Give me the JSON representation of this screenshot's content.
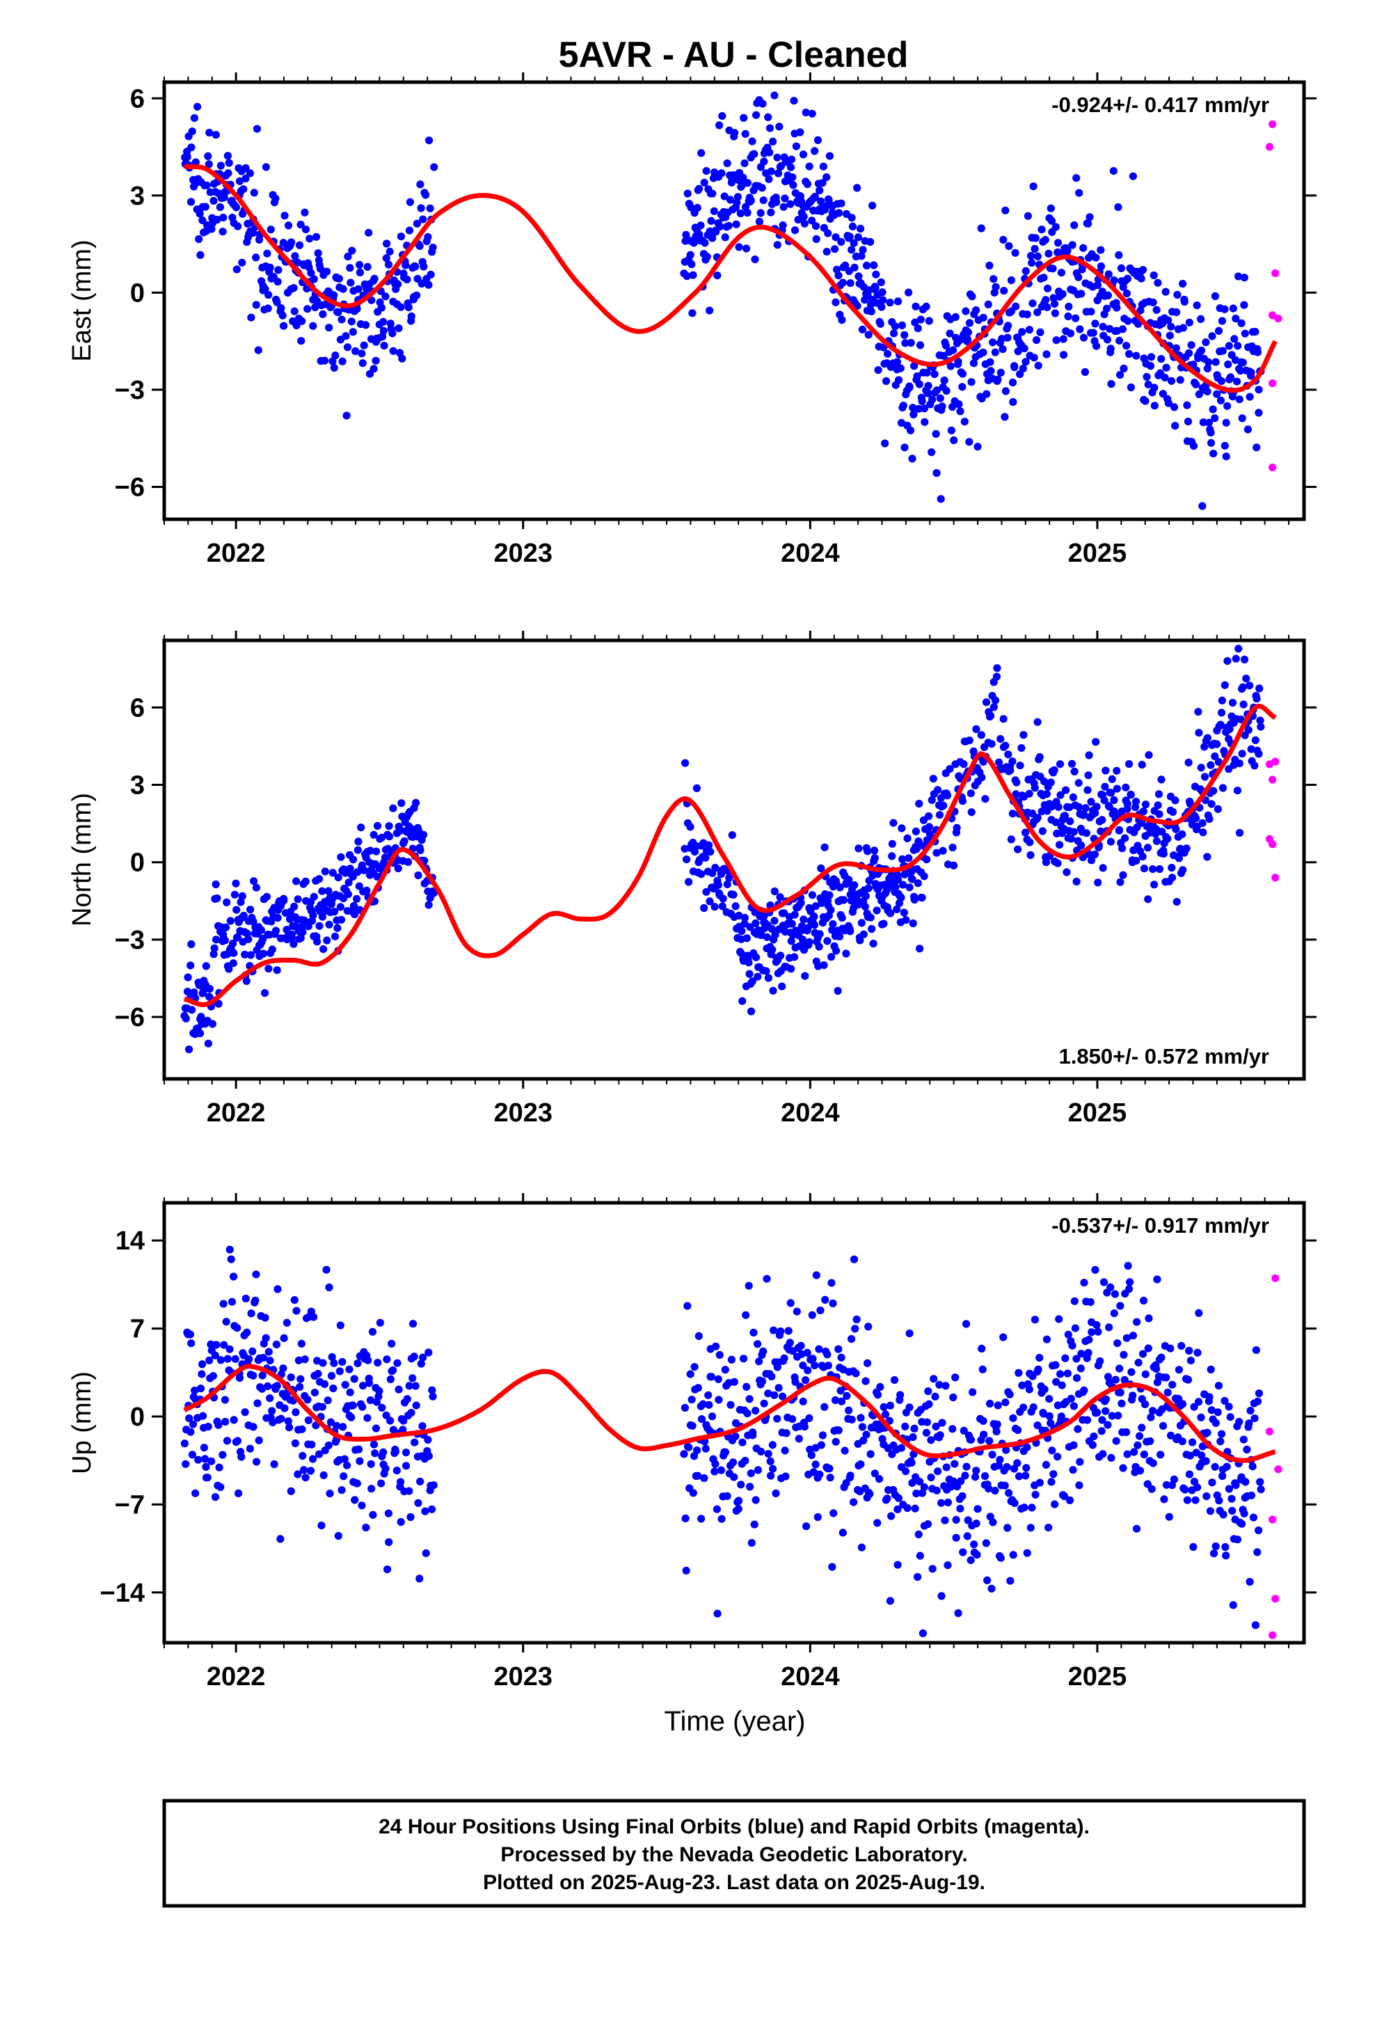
{
  "title": "5AVR  - AU - Cleaned",
  "xlabel": "Time (year)",
  "footer": {
    "line1": "24 Hour Positions Using Final Orbits (blue) and Rapid Orbits (magenta).",
    "line2": "Processed by the Nevada Geodetic Laboratory.",
    "line3": "Plotted on 2025-Aug-23. Last data on 2025-Aug-19."
  },
  "colors": {
    "final": "#0000ff",
    "rapid": "#ff00ff",
    "model": "#ff0000",
    "frame": "#000000"
  },
  "chart_data": [
    {
      "type": "scatter",
      "ylabel": "East (mm)",
      "rate_text": "-0.924+/- 0.417 mm/yr",
      "rate_position": "top-right",
      "xlim": [
        2021.75,
        2025.72
      ],
      "ylim": [
        -7,
        6.5
      ],
      "x_ticks": [
        2022,
        2023,
        2024,
        2025
      ],
      "y_ticks": [
        6,
        3,
        0,
        -3,
        -6
      ],
      "y_tick_labels": [
        "6",
        "3",
        "0",
        "−3",
        "−6"
      ],
      "series": [
        {
          "kind": "final",
          "segments": [
            {
              "x0": 2021.82,
              "x1": 2022.69,
              "n": 330,
              "ctrl_x": [
                2021.82,
                2022.0,
                2022.2,
                2022.42,
                2022.55,
                2022.69
              ],
              "ctrl_y": [
                4.2,
                2.5,
                0.5,
                -0.6,
                -0.2,
                2.0
              ],
              "sd": 1.0
            },
            {
              "x0": 2023.56,
              "x1": 2024.26,
              "n": 290,
              "ctrl_x": [
                2023.56,
                2023.65,
                2023.82,
                2024.0,
                2024.15,
                2024.26
              ],
              "ctrl_y": [
                0.8,
                2.5,
                4.2,
                2.8,
                0.8,
                -1.0
              ],
              "sd": 1.1
            },
            {
              "x0": 2024.26,
              "x1": 2025.57,
              "n": 520,
              "ctrl_x": [
                2024.26,
                2024.42,
                2024.6,
                2024.88,
                2025.1,
                2025.35,
                2025.57
              ],
              "ctrl_y": [
                -1.8,
                -2.8,
                -1.8,
                0.8,
                -0.3,
                -2.6,
                -2.4
              ],
              "sd": 1.3
            }
          ]
        },
        {
          "kind": "rapid",
          "points": [
            [
              2025.61,
              5.2
            ],
            [
              2025.6,
              4.5
            ],
            [
              2025.62,
              0.6
            ],
            [
              2025.61,
              -0.7
            ],
            [
              2025.63,
              -0.8
            ],
            [
              2025.61,
              -2.8
            ],
            [
              2025.61,
              -5.4
            ]
          ]
        }
      ],
      "model": {
        "x": [
          2021.82,
          2021.9,
          2022.0,
          2022.1,
          2022.2,
          2022.3,
          2022.4,
          2022.5,
          2022.6,
          2022.7,
          2022.85,
          2023.0,
          2023.2,
          2023.4,
          2023.6,
          2023.75,
          2023.85,
          2024.0,
          2024.15,
          2024.3,
          2024.45,
          2024.6,
          2024.75,
          2024.88,
          2025.0,
          2025.15,
          2025.3,
          2025.45,
          2025.55,
          2025.62
        ],
        "y": [
          3.9,
          3.8,
          3.0,
          1.8,
          0.8,
          -0.1,
          -0.4,
          0.2,
          1.3,
          2.4,
          3.0,
          2.5,
          0.2,
          -1.2,
          0.0,
          1.7,
          2.0,
          1.1,
          -0.5,
          -1.8,
          -2.2,
          -1.3,
          0.3,
          1.1,
          0.6,
          -0.8,
          -2.2,
          -3.0,
          -2.7,
          -1.5
        ]
      }
    },
    {
      "type": "scatter",
      "ylabel": "North (mm)",
      "rate_text": "1.850+/- 0.572 mm/yr",
      "rate_position": "bottom-right",
      "xlim": [
        2021.75,
        2025.72
      ],
      "ylim": [
        -8.4,
        8.6
      ],
      "x_ticks": [
        2022,
        2023,
        2024,
        2025
      ],
      "y_ticks": [
        6,
        3,
        0,
        -3,
        -6
      ],
      "y_tick_labels": [
        "6",
        "3",
        "0",
        "−3",
        "−6"
      ],
      "series": [
        {
          "kind": "final",
          "segments": [
            {
              "x0": 2021.82,
              "x1": 2021.92,
              "n": 40,
              "ctrl_x": [
                2021.82,
                2021.92
              ],
              "ctrl_y": [
                -5.8,
                -5.5
              ],
              "sd": 1.0
            },
            {
              "x0": 2021.92,
              "x1": 2022.69,
              "n": 300,
              "ctrl_x": [
                2021.92,
                2022.1,
                2022.3,
                2022.5,
                2022.6,
                2022.69
              ],
              "ctrl_y": [
                -2.8,
                -2.6,
                -2.0,
                0.0,
                1.5,
                -1.0
              ],
              "sd": 0.9
            },
            {
              "x0": 2023.56,
              "x1": 2023.75,
              "n": 60,
              "ctrl_x": [
                2023.56,
                2023.65,
                2023.75
              ],
              "ctrl_y": [
                1.5,
                0.0,
                -1.5
              ],
              "sd": 0.9
            },
            {
              "x0": 2023.75,
              "x1": 2024.4,
              "n": 300,
              "ctrl_x": [
                2023.75,
                2023.9,
                2024.1,
                2024.3,
                2024.4
              ],
              "ctrl_y": [
                -3.5,
                -3.0,
                -1.8,
                -1.0,
                0.0
              ],
              "sd": 1.0
            },
            {
              "x0": 2024.4,
              "x1": 2024.7,
              "n": 90,
              "ctrl_x": [
                2024.4,
                2024.55,
                2024.65,
                2024.7
              ],
              "ctrl_y": [
                1.5,
                3.0,
                5.5,
                4.0
              ],
              "sd": 1.1
            },
            {
              "x0": 2024.7,
              "x1": 2025.57,
              "n": 340,
              "ctrl_x": [
                2024.7,
                2024.9,
                2025.1,
                2025.3,
                2025.45,
                2025.57
              ],
              "ctrl_y": [
                2.5,
                1.8,
                1.5,
                1.2,
                4.5,
                6.0
              ],
              "sd": 1.2
            }
          ]
        },
        {
          "kind": "rapid",
          "points": [
            [
              2025.6,
              3.8
            ],
            [
              2025.62,
              3.9
            ],
            [
              2025.61,
              3.2
            ],
            [
              2025.6,
              0.9
            ],
            [
              2025.61,
              0.7
            ],
            [
              2025.62,
              -0.6
            ]
          ]
        }
      ],
      "model": {
        "x": [
          2021.82,
          2021.9,
          2022.0,
          2022.1,
          2022.2,
          2022.3,
          2022.4,
          2022.5,
          2022.58,
          2022.7,
          2022.8,
          2022.9,
          2023.0,
          2023.1,
          2023.2,
          2023.3,
          2023.4,
          2023.5,
          2023.58,
          2023.7,
          2023.82,
          2023.95,
          2024.1,
          2024.25,
          2024.35,
          2024.45,
          2024.55,
          2024.6,
          2024.7,
          2024.8,
          2024.9,
          2025.0,
          2025.1,
          2025.2,
          2025.3,
          2025.45,
          2025.55,
          2025.62
        ],
        "y": [
          -5.3,
          -5.5,
          -4.6,
          -3.9,
          -3.8,
          -3.9,
          -2.8,
          -0.8,
          0.5,
          -1.0,
          -3.2,
          -3.6,
          -2.8,
          -2.0,
          -2.2,
          -2.0,
          -0.6,
          1.8,
          2.4,
          0.2,
          -1.8,
          -1.3,
          -0.1,
          -0.3,
          -0.1,
          1.2,
          3.4,
          4.2,
          2.5,
          0.8,
          0.2,
          0.8,
          1.8,
          1.6,
          1.7,
          4.0,
          6.0,
          5.6
        ]
      }
    },
    {
      "type": "scatter",
      "ylabel": "Up (mm)",
      "rate_text": "-0.537+/- 0.917 mm/yr",
      "rate_position": "top-right",
      "xlim": [
        2021.75,
        2025.72
      ],
      "ylim": [
        -18,
        17
      ],
      "x_ticks": [
        2022,
        2023,
        2024,
        2025
      ],
      "y_ticks": [
        14,
        7,
        0,
        -7,
        -14
      ],
      "y_tick_labels": [
        "14",
        "7",
        "0",
        "−7",
        "−14"
      ],
      "series": [
        {
          "kind": "final",
          "segments": [
            {
              "x0": 2021.82,
              "x1": 2022.69,
              "n": 330,
              "ctrl_x": [
                2021.82,
                2022.05,
                2022.3,
                2022.5,
                2022.69
              ],
              "ctrl_y": [
                0.5,
                4.0,
                0.5,
                -1.5,
                -1.0
              ],
              "sd": 4.3
            },
            {
              "x0": 2023.56,
              "x1": 2025.57,
              "n": 780,
              "ctrl_x": [
                2023.56,
                2023.8,
                2024.0,
                2024.2,
                2024.4,
                2024.6,
                2024.8,
                2025.0,
                2025.2,
                2025.4,
                2025.57
              ],
              "ctrl_y": [
                -2.0,
                0.5,
                2.5,
                -2.0,
                -4.5,
                -4.0,
                -1.5,
                2.5,
                1.0,
                -3.0,
                -4.0
              ],
              "sd": 4.5
            }
          ]
        },
        {
          "kind": "rapid",
          "points": [
            [
              2025.62,
              11.0
            ],
            [
              2025.6,
              -1.2
            ],
            [
              2025.63,
              -4.2
            ],
            [
              2025.61,
              -8.2
            ],
            [
              2025.62,
              -14.5
            ],
            [
              2025.61,
              -17.4
            ]
          ]
        }
      ],
      "model": {
        "x": [
          2021.82,
          2021.9,
          2022.0,
          2022.05,
          2022.15,
          2022.25,
          2022.35,
          2022.45,
          2022.55,
          2022.7,
          2022.85,
          2023.0,
          2023.1,
          2023.2,
          2023.3,
          2023.4,
          2023.5,
          2023.6,
          2023.75,
          2023.9,
          2024.0,
          2024.08,
          2024.2,
          2024.3,
          2024.4,
          2024.5,
          2024.6,
          2024.75,
          2024.9,
          2025.0,
          2025.1,
          2025.2,
          2025.3,
          2025.4,
          2025.5,
          2025.62
        ],
        "y": [
          0.5,
          1.5,
          3.5,
          4.0,
          3.0,
          0.5,
          -1.5,
          -1.8,
          -1.5,
          -1.0,
          0.5,
          3.0,
          3.5,
          1.5,
          -1.0,
          -2.5,
          -2.3,
          -1.8,
          -1.0,
          1.0,
          2.5,
          3.0,
          1.0,
          -1.5,
          -3.0,
          -3.0,
          -2.5,
          -2.0,
          -0.5,
          1.5,
          2.5,
          2.0,
          0.0,
          -2.5,
          -3.5,
          -2.8
        ]
      }
    }
  ]
}
